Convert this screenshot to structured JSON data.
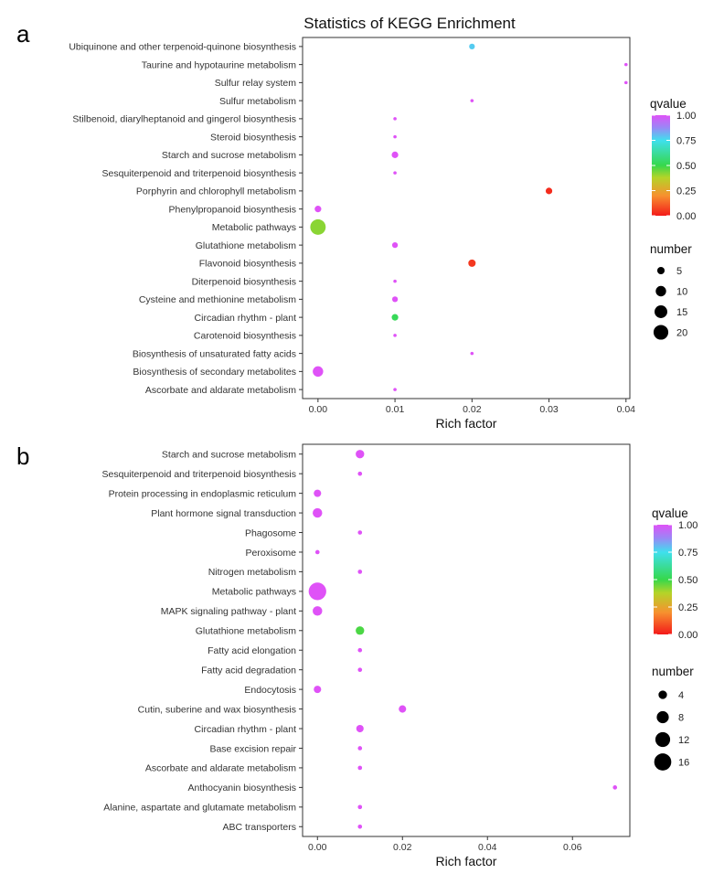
{
  "chart_data": [
    {
      "panel_label": "a",
      "type": "scatter",
      "title": "Statistics of KEGG Enrichment",
      "xlabel": "Rich factor",
      "ylabel": "",
      "xlim": [
        -0.002,
        0.0405
      ],
      "xticks": [
        0,
        0.01,
        0.02,
        0.03,
        0.04
      ],
      "xtick_labels": [
        "0.00",
        "0.01",
        "0.02",
        "0.03",
        "0.04"
      ],
      "grid": false,
      "legend_placement": "right",
      "color_legend": {
        "title": "qvalue",
        "ticks": [
          "1.00",
          "0.75",
          "0.50",
          "0.25",
          "0.00"
        ]
      },
      "size_legend": {
        "title": "number",
        "values": [
          5,
          10,
          15,
          20
        ]
      },
      "points": [
        {
          "pathway": "Ubiquinone and other terpenoid-quinone biosynthesis",
          "rich_factor": 0.02,
          "qvalue": 0.78,
          "number": 3
        },
        {
          "pathway": "Taurine and hypotaurine metabolism",
          "rich_factor": 0.04,
          "qvalue": 1.0,
          "number": 1
        },
        {
          "pathway": "Sulfur relay system",
          "rich_factor": 0.04,
          "qvalue": 1.0,
          "number": 1
        },
        {
          "pathway": "Sulfur metabolism",
          "rich_factor": 0.02,
          "qvalue": 1.0,
          "number": 1
        },
        {
          "pathway": "Stilbenoid, diarylheptanoid and gingerol biosynthesis",
          "rich_factor": 0.01,
          "qvalue": 1.0,
          "number": 1
        },
        {
          "pathway": "Steroid biosynthesis",
          "rich_factor": 0.01,
          "qvalue": 1.0,
          "number": 1
        },
        {
          "pathway": "Starch and sucrose metabolism",
          "rich_factor": 0.01,
          "qvalue": 1.0,
          "number": 4
        },
        {
          "pathway": "Sesquiterpenoid and triterpenoid biosynthesis",
          "rich_factor": 0.01,
          "qvalue": 1.0,
          "number": 1
        },
        {
          "pathway": "Porphyrin and chlorophyll metabolism",
          "rich_factor": 0.03,
          "qvalue": 0.03,
          "number": 4
        },
        {
          "pathway": "Phenylpropanoid biosynthesis",
          "rich_factor": 0.0,
          "qvalue": 1.0,
          "number": 4
        },
        {
          "pathway": "Metabolic pathways",
          "rich_factor": 0.0,
          "qvalue": 0.42,
          "number": 22
        },
        {
          "pathway": "Glutathione metabolism",
          "rich_factor": 0.01,
          "qvalue": 1.0,
          "number": 3
        },
        {
          "pathway": "Flavonoid biosynthesis",
          "rich_factor": 0.02,
          "qvalue": 0.05,
          "number": 5
        },
        {
          "pathway": "Diterpenoid biosynthesis",
          "rich_factor": 0.01,
          "qvalue": 1.0,
          "number": 1
        },
        {
          "pathway": "Cysteine and methionine metabolism",
          "rich_factor": 0.01,
          "qvalue": 1.0,
          "number": 3
        },
        {
          "pathway": "Circadian rhythm - plant",
          "rich_factor": 0.01,
          "qvalue": 0.52,
          "number": 4
        },
        {
          "pathway": "Carotenoid biosynthesis",
          "rich_factor": 0.01,
          "qvalue": 1.0,
          "number": 1
        },
        {
          "pathway": "Biosynthesis of unsaturated fatty acids",
          "rich_factor": 0.02,
          "qvalue": 1.0,
          "number": 1
        },
        {
          "pathway": "Biosynthesis of secondary metabolites",
          "rich_factor": 0.0,
          "qvalue": 1.0,
          "number": 10
        },
        {
          "pathway": "Ascorbate and aldarate metabolism",
          "rich_factor": 0.01,
          "qvalue": 1.0,
          "number": 1
        }
      ]
    },
    {
      "panel_label": "b",
      "type": "scatter",
      "title": "",
      "xlabel": "Rich factor",
      "ylabel": "",
      "xlim": [
        -0.0035,
        0.0735
      ],
      "xticks": [
        0,
        0.02,
        0.04,
        0.06
      ],
      "xtick_labels": [
        "0.00",
        "0.02",
        "0.04",
        "0.06"
      ],
      "grid": false,
      "legend_placement": "right",
      "color_legend": {
        "title": "qvalue",
        "ticks": [
          "1.00",
          "0.75",
          "0.50",
          "0.25",
          "0.00"
        ]
      },
      "size_legend": {
        "title": "number",
        "values": [
          4,
          8,
          12,
          16
        ]
      },
      "points": [
        {
          "pathway": "Starch and sucrose metabolism",
          "rich_factor": 0.01,
          "qvalue": 1.0,
          "number": 4
        },
        {
          "pathway": "Sesquiterpenoid and triterpenoid biosynthesis",
          "rich_factor": 0.01,
          "qvalue": 1.0,
          "number": 1
        },
        {
          "pathway": "Protein processing in endoplasmic reticulum",
          "rich_factor": 0.0,
          "qvalue": 1.0,
          "number": 3
        },
        {
          "pathway": "Plant hormone signal transduction",
          "rich_factor": 0.0,
          "qvalue": 1.0,
          "number": 5
        },
        {
          "pathway": "Phagosome",
          "rich_factor": 0.01,
          "qvalue": 1.0,
          "number": 1
        },
        {
          "pathway": "Peroxisome",
          "rich_factor": 0.0,
          "qvalue": 1.0,
          "number": 1
        },
        {
          "pathway": "Nitrogen metabolism",
          "rich_factor": 0.01,
          "qvalue": 1.0,
          "number": 1
        },
        {
          "pathway": "Metabolic pathways",
          "rich_factor": 0.0,
          "qvalue": 1.0,
          "number": 17
        },
        {
          "pathway": "MAPK signaling pathway - plant",
          "rich_factor": 0.0,
          "qvalue": 1.0,
          "number": 5
        },
        {
          "pathway": "Glutathione metabolism",
          "rich_factor": 0.01,
          "qvalue": 0.48,
          "number": 4
        },
        {
          "pathway": "Fatty acid elongation",
          "rich_factor": 0.01,
          "qvalue": 1.0,
          "number": 1
        },
        {
          "pathway": "Fatty acid degradation",
          "rich_factor": 0.01,
          "qvalue": 1.0,
          "number": 1
        },
        {
          "pathway": "Endocytosis",
          "rich_factor": 0.0,
          "qvalue": 1.0,
          "number": 3
        },
        {
          "pathway": "Cutin, suberine and wax biosynthesis",
          "rich_factor": 0.02,
          "qvalue": 1.0,
          "number": 3
        },
        {
          "pathway": "Circadian rhythm - plant",
          "rich_factor": 0.01,
          "qvalue": 1.0,
          "number": 3
        },
        {
          "pathway": "Base excision repair",
          "rich_factor": 0.01,
          "qvalue": 1.0,
          "number": 1
        },
        {
          "pathway": "Ascorbate and aldarate metabolism",
          "rich_factor": 0.01,
          "qvalue": 1.0,
          "number": 1
        },
        {
          "pathway": "Anthocyanin biosynthesis",
          "rich_factor": 0.07,
          "qvalue": 1.0,
          "number": 1
        },
        {
          "pathway": "Alanine, aspartate and glutamate metabolism",
          "rich_factor": 0.01,
          "qvalue": 1.0,
          "number": 1
        },
        {
          "pathway": "ABC transporters",
          "rich_factor": 0.01,
          "qvalue": 1.0,
          "number": 1
        }
      ]
    }
  ]
}
